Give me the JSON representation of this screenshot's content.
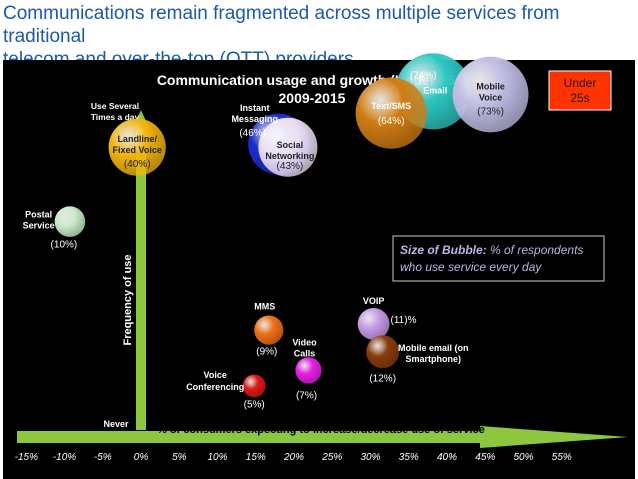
{
  "slide": {
    "title_line1": "Communications remain fragmented across multiple services from traditional",
    "title_line2": "telecom and over-the-top (OTT) providers"
  },
  "chart_data": {
    "type": "scatter",
    "title_line1": "Communication usage and growth (Under 25s)",
    "title_line2": "2009-2015",
    "badge_line1": "Under",
    "badge_line2": "25s",
    "xlabel": "% of consumers expecting to increase/decrease use of service",
    "ylabel": "Frequency of use",
    "y_top_label_line1": "Use Several",
    "y_top_label_line2": "Times a day",
    "y_bottom_label": "Never",
    "xlim": [
      -15,
      55
    ],
    "x_ticks": [
      "-15%",
      "-10%",
      "-5%",
      "0%",
      "5%",
      "10%",
      "15%",
      "20%",
      "25%",
      "30%",
      "35%",
      "40%",
      "45%",
      "50%",
      "55%"
    ],
    "legend_bold": "Size of Bubble:",
    "legend_text_line1": " % of respondents",
    "legend_text_line2": "who use service every day",
    "points": [
      {
        "name": "Postal Service",
        "label_lines": [
          "Postal",
          "Service"
        ],
        "pct_label": "(10%)",
        "x": -9.3,
        "y": 0.64,
        "size": 10,
        "color": "#c9ecc9"
      },
      {
        "name": "Landline/Fixed Voice",
        "label_lines": [
          "Landline/",
          "Fixed Voice"
        ],
        "pct_label": "(40%)",
        "x": -0.5,
        "y": 0.88,
        "size": 40,
        "color": "#f2b50e"
      },
      {
        "name": "Instant Messaging",
        "label_lines": [
          "Instant",
          "Messaging"
        ],
        "pct_label": "(46%)",
        "x": 18.0,
        "y": 0.89,
        "size": 46,
        "color": "#1a2fd0"
      },
      {
        "name": "Social Networking",
        "label_lines": [
          "Social",
          "Networking"
        ],
        "pct_label": "(43%)",
        "x": 19.2,
        "y": 0.88,
        "size": 43,
        "color": "#ecdff3"
      },
      {
        "name": "Email",
        "label_lines": [
          "Email"
        ],
        "pct_label": "(74%)",
        "x": 38.2,
        "y": 1.06,
        "size": 74,
        "color": "#2dc7c2"
      },
      {
        "name": "Mobile Voice",
        "label_lines": [
          "Mobile",
          "Voice"
        ],
        "pct_label": "(73%)",
        "x": 45.7,
        "y": 1.05,
        "size": 73,
        "color": "#c0bde3"
      },
      {
        "name": "Text/SMS",
        "label_lines": [
          "Text/SMS"
        ],
        "pct_label": "(64%)",
        "x": 32.7,
        "y": 0.99,
        "size": 64,
        "color": "#d07d14"
      },
      {
        "name": "MMS",
        "label_lines": [
          "MMS"
        ],
        "pct_label": "(9%)",
        "x": 16.7,
        "y": 0.29,
        "size": 9,
        "color": "#f07018"
      },
      {
        "name": "Video Calls",
        "label_lines": [
          "Video",
          "Calls"
        ],
        "pct_label": "(7%)",
        "x": 21.9,
        "y": 0.16,
        "size": 7,
        "color": "#e81ee8"
      },
      {
        "name": "Voice Conferencing",
        "label_lines": [
          "Voice",
          "Conferencing"
        ],
        "pct_label": "(5%)",
        "x": 14.8,
        "y": 0.11,
        "size": 5,
        "color": "#e01818"
      },
      {
        "name": "VOIP",
        "label_lines": [
          "VOIP"
        ],
        "pct_label": "(11)%",
        "x": 30.4,
        "y": 0.31,
        "size": 11,
        "color": "#c79be8"
      },
      {
        "name": "Mobile email (on Smartphone)",
        "label_lines": [
          "Mobile email (on",
          "Smartphone)"
        ],
        "pct_label": "(12%)",
        "x": 31.6,
        "y": 0.22,
        "size": 12,
        "color": "#8a3c0e"
      }
    ]
  }
}
